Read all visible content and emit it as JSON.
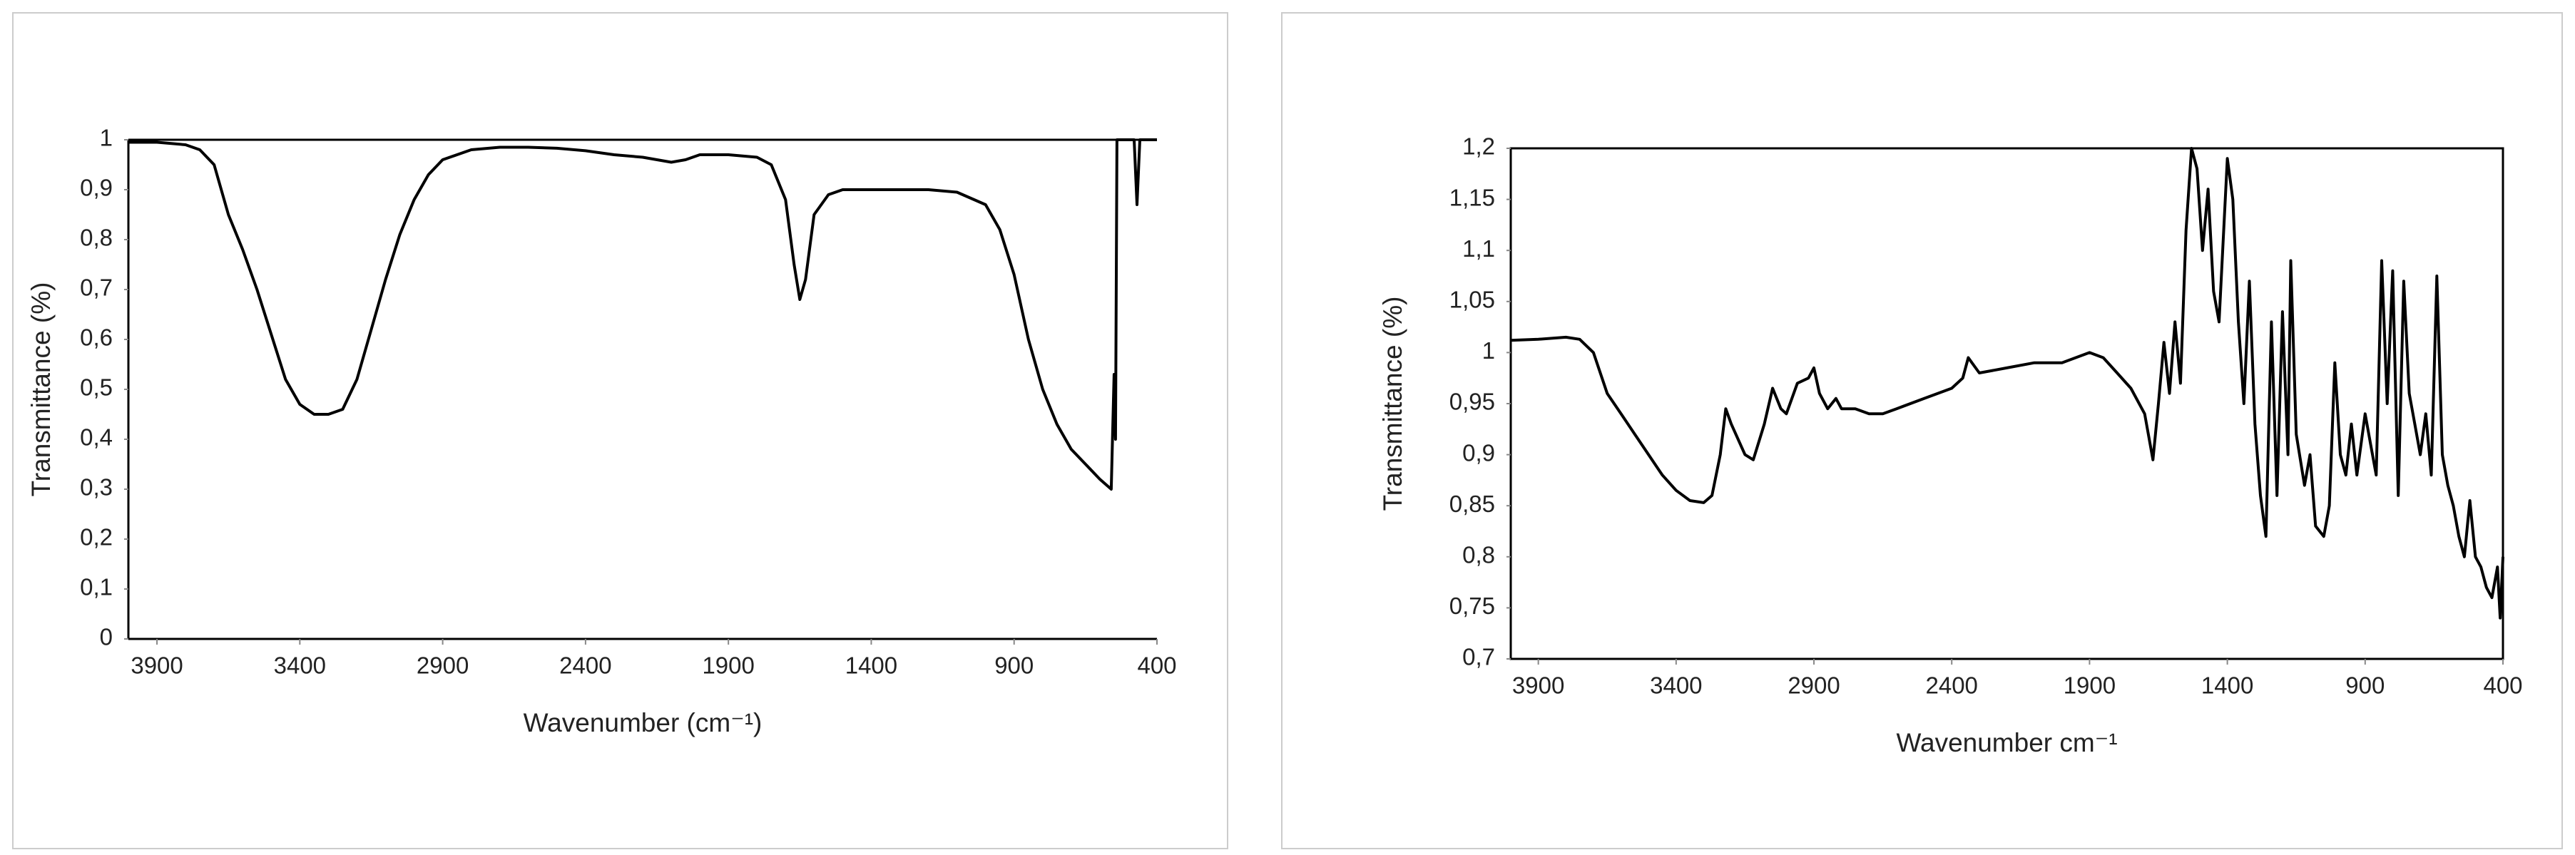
{
  "chart_data": [
    {
      "type": "line",
      "xlabel": "Wavenumber (cm⁻¹)",
      "ylabel": "Transmittance (%)",
      "color": "#000000",
      "xlim": [
        4000,
        400
      ],
      "xticks": [
        3900,
        3400,
        2900,
        2400,
        1900,
        1400,
        900,
        400
      ],
      "ylim": [
        0,
        1
      ],
      "yticks": [
        0,
        {
          "value": 0.1,
          "label": "0,1"
        },
        {
          "value": 0.2,
          "label": "0,2"
        },
        {
          "value": 0.3,
          "label": "0,3"
        },
        {
          "value": 0.4,
          "label": "0,4"
        },
        {
          "value": 0.5,
          "label": "0,5"
        },
        {
          "value": 0.6,
          "label": "0,6"
        },
        {
          "value": 0.7,
          "label": "0,7"
        },
        {
          "value": 0.8,
          "label": "0,8"
        },
        {
          "value": 0.9,
          "label": "0,9"
        },
        1
      ],
      "x": [
        4000,
        3900,
        3800,
        3750,
        3700,
        3650,
        3600,
        3550,
        3500,
        3450,
        3400,
        3350,
        3300,
        3250,
        3200,
        3150,
        3100,
        3050,
        3000,
        2950,
        2900,
        2800,
        2700,
        2600,
        2500,
        2400,
        2300,
        2200,
        2150,
        2100,
        2050,
        2000,
        1900,
        1800,
        1750,
        1700,
        1670,
        1650,
        1630,
        1600,
        1550,
        1500,
        1400,
        1300,
        1200,
        1100,
        1000,
        950,
        900,
        850,
        800,
        750,
        700,
        650,
        600,
        580,
        560,
        550,
        545,
        540,
        520,
        500,
        480,
        470,
        460,
        400
      ],
      "values": [
        0.995,
        0.995,
        0.99,
        0.98,
        0.95,
        0.85,
        0.78,
        0.7,
        0.61,
        0.52,
        0.47,
        0.45,
        0.45,
        0.46,
        0.52,
        0.62,
        0.72,
        0.81,
        0.88,
        0.93,
        0.96,
        0.98,
        0.985,
        0.985,
        0.983,
        0.978,
        0.97,
        0.965,
        0.96,
        0.955,
        0.96,
        0.97,
        0.97,
        0.965,
        0.95,
        0.88,
        0.75,
        0.68,
        0.72,
        0.85,
        0.89,
        0.9,
        0.9,
        0.9,
        0.9,
        0.895,
        0.87,
        0.82,
        0.73,
        0.6,
        0.5,
        0.43,
        0.38,
        0.35,
        0.32,
        0.31,
        0.3,
        0.53,
        0.4,
        1.0,
        1.0,
        1.0,
        1.0,
        0.87,
        1.0,
        1.0
      ]
    },
    {
      "type": "line",
      "xlabel": "Wavenumber cm⁻¹",
      "ylabel": "Transmittance (%)",
      "color": "#000000",
      "xlim": [
        4000,
        400
      ],
      "xticks": [
        3900,
        3400,
        2900,
        2400,
        1900,
        1400,
        900,
        400
      ],
      "ylim": [
        0.7,
        1.2
      ],
      "yticks": [
        {
          "value": 0.7,
          "label": "0,7"
        },
        {
          "value": 0.75,
          "label": "0,75"
        },
        {
          "value": 0.8,
          "label": "0,8"
        },
        {
          "value": 0.85,
          "label": "0,85"
        },
        {
          "value": 0.9,
          "label": "0,9"
        },
        {
          "value": 0.95,
          "label": "0,95"
        },
        1,
        {
          "value": 1.05,
          "label": "1,05"
        },
        {
          "value": 1.1,
          "label": "1,1"
        },
        {
          "value": 1.15,
          "label": "1,15"
        },
        {
          "value": 1.2,
          "label": "1,2"
        }
      ],
      "x": [
        4000,
        3900,
        3800,
        3750,
        3700,
        3650,
        3600,
        3550,
        3500,
        3450,
        3400,
        3350,
        3300,
        3270,
        3240,
        3220,
        3200,
        3150,
        3120,
        3080,
        3050,
        3020,
        3000,
        2960,
        2920,
        2900,
        2880,
        2850,
        2820,
        2800,
        2750,
        2700,
        2650,
        2600,
        2500,
        2400,
        2360,
        2340,
        2300,
        2200,
        2100,
        2000,
        1900,
        1850,
        1800,
        1750,
        1700,
        1670,
        1650,
        1630,
        1610,
        1590,
        1570,
        1550,
        1530,
        1510,
        1490,
        1470,
        1450,
        1430,
        1400,
        1380,
        1360,
        1340,
        1320,
        1300,
        1280,
        1260,
        1240,
        1220,
        1200,
        1180,
        1170,
        1150,
        1120,
        1100,
        1080,
        1050,
        1030,
        1010,
        990,
        970,
        950,
        930,
        900,
        880,
        860,
        840,
        820,
        800,
        780,
        760,
        740,
        720,
        700,
        680,
        660,
        640,
        620,
        600,
        580,
        560,
        540,
        520,
        500,
        480,
        460,
        440,
        420,
        410,
        400
      ],
      "values": [
        1.012,
        1.013,
        1.015,
        1.013,
        1.0,
        0.96,
        0.94,
        0.92,
        0.9,
        0.88,
        0.865,
        0.855,
        0.853,
        0.86,
        0.9,
        0.945,
        0.93,
        0.9,
        0.895,
        0.93,
        0.965,
        0.945,
        0.94,
        0.97,
        0.975,
        0.985,
        0.96,
        0.945,
        0.955,
        0.945,
        0.945,
        0.94,
        0.94,
        0.945,
        0.955,
        0.965,
        0.975,
        0.995,
        0.98,
        0.985,
        0.99,
        0.99,
        1.0,
        0.995,
        0.98,
        0.965,
        0.94,
        0.895,
        0.95,
        1.01,
        0.96,
        1.03,
        0.97,
        1.12,
        1.2,
        1.18,
        1.1,
        1.16,
        1.06,
        1.03,
        1.19,
        1.15,
        1.03,
        0.95,
        1.07,
        0.93,
        0.86,
        0.82,
        1.03,
        0.86,
        1.04,
        0.9,
        1.09,
        0.92,
        0.87,
        0.9,
        0.83,
        0.82,
        0.85,
        0.99,
        0.9,
        0.88,
        0.93,
        0.88,
        0.94,
        0.91,
        0.88,
        1.09,
        0.95,
        1.08,
        0.86,
        1.07,
        0.96,
        0.93,
        0.9,
        0.94,
        0.88,
        1.075,
        0.9,
        0.87,
        0.85,
        0.82,
        0.8,
        0.855,
        0.8,
        0.79,
        0.77,
        0.76,
        0.79,
        0.74,
        0.8
      ]
    }
  ]
}
